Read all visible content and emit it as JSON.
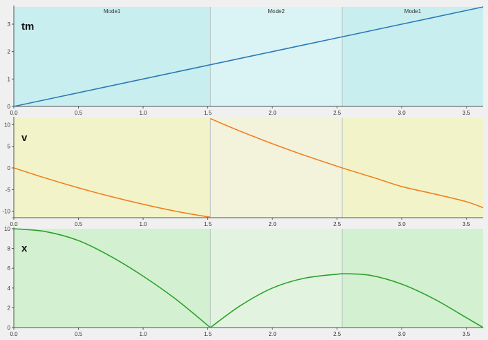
{
  "colors": {
    "page_bg": "#f0f0f0",
    "axis": "#505050",
    "mode_divider": "#b8c4c4"
  },
  "modes": [
    {
      "label": "Mode1",
      "t_start": 0.0,
      "t_end": 1.52
    },
    {
      "label": "Mode2",
      "t_start": 1.52,
      "t_end": 2.54
    },
    {
      "label": "Mode1",
      "t_start": 2.54,
      "t_end": 3.63
    }
  ],
  "chart_data": [
    {
      "type": "line",
      "title": "tm",
      "xlim": [
        0,
        3.63
      ],
      "ylim": [
        0,
        3.63
      ],
      "x_ticks": [
        "0.0",
        "0.5",
        "1.0",
        "1.5",
        "2.0",
        "2.5",
        "3.0",
        "3.5"
      ],
      "x_tick_values": [
        0.0,
        0.5,
        1.0,
        1.5,
        2.0,
        2.5,
        3.0,
        3.5
      ],
      "y_ticks": [
        "0",
        "1",
        "2",
        "3"
      ],
      "y_tick_values": [
        0,
        1,
        2,
        3
      ],
      "grid": false,
      "line_color": "#2a7ab5",
      "bg_mode": "#c9eef0",
      "bg_alt": "#daf3f4",
      "series": [
        {
          "x": [
            0,
            0.5,
            1.0,
            1.52
          ],
          "y": [
            0,
            0.5,
            1.0,
            1.52
          ]
        },
        {
          "x": [
            1.52,
            2.0,
            2.54
          ],
          "y": [
            1.52,
            2.0,
            2.54
          ]
        },
        {
          "x": [
            2.54,
            3.0,
            3.63
          ],
          "y": [
            2.54,
            3.0,
            3.63
          ]
        }
      ]
    },
    {
      "type": "line",
      "title": "v",
      "xlim": [
        0,
        3.63
      ],
      "ylim": [
        -11.5,
        11.5
      ],
      "x_ticks": [
        "0.0",
        "0.5",
        "1.0",
        "1.5",
        "2.0",
        "2.5",
        "3.0",
        "3.5"
      ],
      "x_tick_values": [
        0.0,
        0.5,
        1.0,
        1.5,
        2.0,
        2.5,
        3.0,
        3.5
      ],
      "y_ticks": [
        "10",
        "5",
        "0",
        "-5",
        "-10"
      ],
      "y_tick_values": [
        10,
        5,
        0,
        -5,
        -10
      ],
      "grid": false,
      "line_color": "#f08020",
      "bg_mode": "#f3f3c9",
      "bg_alt": "#f3f3db",
      "series": [
        {
          "x": [
            0,
            0.25,
            0.5,
            0.75,
            1.0,
            1.25,
            1.52
          ],
          "y": [
            0,
            -2.4,
            -4.6,
            -6.6,
            -8.4,
            -10.0,
            -11.4
          ]
        },
        {
          "x": [
            1.52,
            1.75,
            2.0,
            2.25,
            2.54
          ],
          "y": [
            11.4,
            8.5,
            5.6,
            2.9,
            0
          ]
        },
        {
          "x": [
            2.54,
            2.8,
            3.0,
            3.25,
            3.5,
            3.63
          ],
          "y": [
            0,
            -2.4,
            -4.3,
            -6.0,
            -7.8,
            -9.2
          ]
        }
      ]
    },
    {
      "type": "line",
      "title": "x",
      "xlim": [
        0,
        3.63
      ],
      "ylim": [
        0,
        10
      ],
      "x_ticks": [
        "0.0",
        "0.5",
        "1.0",
        "1.5",
        "2.0",
        "2.5",
        "3.0",
        "3.5"
      ],
      "x_tick_values": [
        0.0,
        0.5,
        1.0,
        1.5,
        2.0,
        2.5,
        3.0,
        3.5
      ],
      "y_ticks": [
        "10",
        "8",
        "6",
        "4",
        "2",
        "0"
      ],
      "y_tick_values": [
        10,
        8,
        6,
        4,
        2,
        0
      ],
      "grid": false,
      "line_color": "#2ca02c",
      "bg_mode": "#d3f0d0",
      "bg_alt": "#e2f4df",
      "series": [
        {
          "x": [
            0,
            0.25,
            0.5,
            0.75,
            1.0,
            1.25,
            1.52
          ],
          "y": [
            10,
            9.7,
            8.8,
            7.2,
            5.2,
            2.9,
            0
          ]
        },
        {
          "x": [
            1.52,
            1.75,
            2.0,
            2.25,
            2.54
          ],
          "y": [
            0,
            2.2,
            4.0,
            5.0,
            5.45
          ]
        },
        {
          "x": [
            2.54,
            2.75,
            3.0,
            3.25,
            3.5,
            3.63
          ],
          "y": [
            5.45,
            5.3,
            4.4,
            2.9,
            1.0,
            0
          ]
        }
      ]
    }
  ]
}
